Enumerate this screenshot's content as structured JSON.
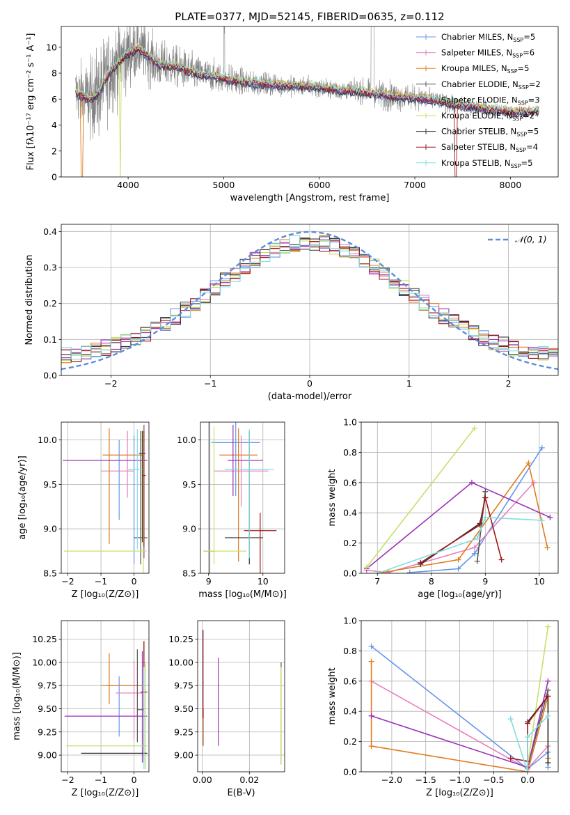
{
  "figure": {
    "title": "PLATE=0377, MJD=52145, FIBERID=0635, z=0.112"
  },
  "colors": {
    "Chabrier MILES": "#6495ed",
    "Salpeter MILES": "#e87fbd",
    "Kroupa MILES": "#e07b1f",
    "Chabrier ELODIE": "#555555",
    "Salpeter ELODIE": "#9b30b8",
    "Kroupa ELODIE": "#c6e06a",
    "Chabrier STELIB": "#333333",
    "Salpeter STELIB": "#a01818",
    "Kroupa STELIB": "#80dde0",
    "data": "#808080",
    "normal": "#5b8ddb"
  },
  "chart_data": [
    {
      "id": "spectrum",
      "type": "line",
      "title": "PLATE=0377, MJD=52145, FIBERID=0635, z=0.112",
      "xlabel": "wavelength [Angstrom, rest frame]",
      "ylabel": "Flux [fλ10⁻¹⁷ erg cm⁻² s⁻¹ A⁻¹]",
      "xlim": [
        3300,
        8500
      ],
      "ylim": [
        0,
        11.6
      ],
      "xticks": [
        4000,
        5000,
        6000,
        7000,
        8000
      ],
      "yticks": [
        0,
        2,
        4,
        6,
        8,
        10
      ],
      "grid": false,
      "legend_position": "top-right",
      "legend": [
        "Chabrier MILES, N_SSP=5",
        "Salpeter MILES, N_SSP=6",
        "Kroupa MILES, N_SSP=5",
        "Chabrier ELODIE, N_SSP=2",
        "Salpeter ELODIE, N_SSP=3",
        "Kroupa ELODIE, N_SSP=2",
        "Chabrier STELIB, N_SSP=5",
        "Salpeter STELIB, N_SSP=4",
        "Kroupa STELIB, N_SSP=5"
      ],
      "legend_display": [
        {
          "base": "Chabrier MILES, N",
          "sub": "SSP",
          "tail": "=5"
        },
        {
          "base": "Salpeter MILES, N",
          "sub": "SSP",
          "tail": "=6"
        },
        {
          "base": "Kroupa MILES, N",
          "sub": "SSP",
          "tail": "=5"
        },
        {
          "base": "Chabrier ELODIE, N",
          "sub": "SSP",
          "tail": "=2"
        },
        {
          "base": "Salpeter ELODIE, N",
          "sub": "SSP",
          "tail": "=3"
        },
        {
          "base": "Kroupa ELODIE, N",
          "sub": "SSP",
          "tail": "=2"
        },
        {
          "base": "Chabrier STELIB, N",
          "sub": "SSP",
          "tail": "=5"
        },
        {
          "base": "Salpeter STELIB, N",
          "sub": "SSP",
          "tail": "=4"
        },
        {
          "base": "Kroupa STELIB, N",
          "sub": "SSP",
          "tail": "=5"
        }
      ],
      "model_continuum": {
        "x": [
          3450,
          3600,
          3700,
          3800,
          3900,
          4000,
          4100,
          4200,
          4300,
          4400,
          4500,
          4700,
          5000,
          5200,
          5500,
          5800,
          6000,
          6200,
          6400,
          6600,
          6800,
          7000,
          7200,
          7400,
          7600,
          7800,
          8000,
          8200,
          8300
        ],
        "y": [
          6.5,
          6.0,
          6.5,
          8.0,
          8.9,
          9.5,
          9.9,
          9.4,
          8.7,
          8.6,
          8.5,
          8.0,
          7.6,
          7.3,
          7.1,
          7.0,
          6.9,
          6.7,
          6.6,
          6.4,
          6.2,
          6.1,
          5.9,
          5.6,
          5.4,
          5.2,
          5.0,
          5.0,
          5.1
        ]
      },
      "data_noise_profile": {
        "x": [
          3450,
          3700,
          3900,
          4100,
          4400,
          4800,
          5200,
          5600,
          6000,
          6400,
          6700,
          6900,
          7200,
          7600,
          8000,
          8300
        ],
        "sigma": [
          1.6,
          2.5,
          2.2,
          1.6,
          1.2,
          0.9,
          0.7,
          0.55,
          0.5,
          0.55,
          0.8,
          0.7,
          0.5,
          0.4,
          0.35,
          0.3
        ]
      }
    },
    {
      "id": "residual_histogram",
      "type": "line",
      "xlabel": "(data-model)/error",
      "ylabel": "Normed distribution",
      "xlim": [
        -2.5,
        2.5
      ],
      "ylim": [
        0,
        0.42
      ],
      "xticks": [
        -2,
        -1,
        0,
        1,
        2
      ],
      "yticks": [
        0.0,
        0.1,
        0.2,
        0.3,
        0.4
      ],
      "grid": true,
      "legend": [
        "𝒩(0, 1)"
      ],
      "legend_position": "top-right",
      "bin_width": 0.1,
      "reference_curve": "normal(0,1)"
    },
    {
      "id": "age_vs_Z_scatter",
      "type": "scatter",
      "xlabel": "Z [log₁₀(Z/Z⊙)]",
      "ylabel": "age  [log₁₀(age/yr)]",
      "xlim": [
        -2.2,
        0.45
      ],
      "ylim": [
        8.5,
        10.2
      ],
      "xticks": [
        -2,
        -1,
        0
      ],
      "yticks": [
        8.5,
        9.0,
        9.5,
        10.0
      ],
      "grid": true,
      "series": [
        {
          "name": "Chabrier MILES",
          "x": 0.0,
          "y": 9.45,
          "xerr": [
            0.0,
            0.0
          ],
          "yerr": [
            0.85,
            0.6
          ]
        },
        {
          "name": "Chabrier MILES",
          "x": -0.45,
          "y": 9.6,
          "xerr": [
            0,
            0
          ],
          "yerr": [
            0.5,
            0.4
          ]
        },
        {
          "name": "Salpeter MILES",
          "x": -0.2,
          "y": 9.65,
          "xerr": [
            0.8,
            0.2
          ],
          "yerr": [
            0.3,
            0.45
          ]
        },
        {
          "name": "Kroupa MILES",
          "x": -0.75,
          "y": 9.83,
          "xerr": [
            0.2,
            1.0
          ],
          "yerr": [
            1.0,
            0.3
          ]
        },
        {
          "name": "Chabrier ELODIE",
          "x": 0.2,
          "y": 8.9,
          "xerr": [
            0.2,
            0.2
          ],
          "yerr": [
            0.3,
            1.2
          ]
        },
        {
          "name": "Salpeter ELODIE",
          "x": 0.3,
          "y": 9.77,
          "xerr": [
            2.45,
            0.1
          ],
          "yerr": [
            1.1,
            0.4
          ]
        },
        {
          "name": "Kroupa ELODIE",
          "x": 0.28,
          "y": 8.75,
          "xerr": [
            2.4,
            0.1
          ],
          "yerr": [
            0.25,
            1.4
          ]
        },
        {
          "name": "Chabrier STELIB",
          "x": 0.25,
          "y": 9.85,
          "xerr": [
            0.1,
            0.1
          ],
          "yerr": [
            1.0,
            0.25
          ]
        },
        {
          "name": "Salpeter STELIB",
          "x": 0.3,
          "y": 9.6,
          "xerr": [
            0.05,
            0.05
          ],
          "yerr": [
            0.8,
            0.5
          ]
        },
        {
          "name": "Kroupa STELIB",
          "x": 0.1,
          "y": 9.67,
          "xerr": [
            0.3,
            0.15
          ],
          "yerr": [
            0.9,
            0.45
          ]
        }
      ]
    },
    {
      "id": "age_vs_mass_scatter",
      "type": "scatter",
      "xlabel": "mass [log₁₀(M/M⊙)]",
      "xlim": [
        8.85,
        10.4
      ],
      "ylim": [
        8.5,
        10.2
      ],
      "xticks": [
        9,
        10
      ],
      "yticks": [
        8.5,
        9.0,
        9.5,
        10.0
      ],
      "grid": true,
      "series": [
        {
          "name": "Chabrier MILES",
          "x": 9.5,
          "y": 9.97,
          "xerr": [
            0.45,
            0.45
          ],
          "yerr": [
            0.6,
            0.5
          ]
        },
        {
          "name": "Salpeter MILES",
          "x": 9.6,
          "y": 9.65,
          "xerr": [
            0.5,
            0.5
          ],
          "yerr": [
            0.4,
            0.4
          ]
        },
        {
          "name": "Kroupa MILES",
          "x": 9.55,
          "y": 9.83,
          "xerr": [
            0.35,
            0.35
          ],
          "yerr": [
            1.2,
            0.3
          ]
        },
        {
          "name": "Chabrier ELODIE",
          "x": 9.02,
          "y": 8.75,
          "xerr": [
            0.1,
            0.1
          ],
          "yerr": [
            0.3,
            1.45
          ]
        },
        {
          "name": "Salpeter ELODIE",
          "x": 9.45,
          "y": 9.77,
          "xerr": [
            0.1,
            0.55
          ],
          "yerr": [
            0.4,
            0.4
          ]
        },
        {
          "name": "Kroupa ELODIE",
          "x": 9.1,
          "y": 8.75,
          "xerr": [
            0.2,
            0.6
          ],
          "yerr": [
            0.15,
            1.4
          ]
        },
        {
          "name": "Chabrier STELIB",
          "x": 9.75,
          "y": 8.9,
          "xerr": [
            0.45,
            0.25
          ],
          "yerr": [
            0.3,
            1.2
          ]
        },
        {
          "name": "Salpeter STELIB",
          "x": 9.95,
          "y": 8.98,
          "xerr": [
            0.3,
            0.3
          ],
          "yerr": [
            1.2,
            0.2
          ]
        },
        {
          "name": "Kroupa STELIB",
          "x": 9.75,
          "y": 9.67,
          "xerr": [
            0.45,
            0.45
          ],
          "yerr": [
            1.0,
            0.45
          ]
        }
      ]
    },
    {
      "id": "mass_weight_vs_age",
      "type": "line",
      "xlabel": "age  [log₁₀(age/yr)]",
      "ylabel": "mass weight",
      "xlim": [
        6.7,
        10.35
      ],
      "ylim": [
        0.0,
        1.0
      ],
      "xticks": [
        7,
        8,
        9,
        10
      ],
      "yticks": [
        0.0,
        0.2,
        0.4,
        0.6,
        0.8,
        1.0
      ],
      "grid": true,
      "series": [
        {
          "name": "Chabrier MILES",
          "x": [
            7.6,
            8.5,
            8.8,
            10.05
          ],
          "y": [
            0.005,
            0.03,
            0.13,
            0.83
          ]
        },
        {
          "name": "Salpeter MILES",
          "x": [
            6.8,
            7.2,
            8.8,
            9.9
          ],
          "y": [
            0.02,
            0.005,
            0.17,
            0.6
          ]
        },
        {
          "name": "Kroupa MILES",
          "x": [
            7.0,
            8.5,
            9.8,
            10.15
          ],
          "y": [
            0.0,
            0.09,
            0.73,
            0.17
          ]
        },
        {
          "name": "Chabrier ELODIE",
          "x": [
            8.85,
            9.0
          ],
          "y": [
            0.08,
            0.54
          ]
        },
        {
          "name": "Salpeter ELODIE",
          "x": [
            6.8,
            8.75,
            10.2
          ],
          "y": [
            0.03,
            0.6,
            0.37
          ]
        },
        {
          "name": "Kroupa ELODIE",
          "x": [
            6.8,
            8.8
          ],
          "y": [
            0.04,
            0.96
          ]
        },
        {
          "name": "Chabrier STELIB",
          "x": [
            7.8,
            8.9,
            9.0
          ],
          "y": [
            0.06,
            0.33,
            0.5
          ]
        },
        {
          "name": "Salpeter STELIB",
          "x": [
            7.8,
            8.9,
            9.0,
            9.3
          ],
          "y": [
            0.07,
            0.32,
            0.5,
            0.09
          ]
        },
        {
          "name": "Kroupa STELIB",
          "x": [
            7.0,
            8.85,
            9.0,
            10.05
          ],
          "y": [
            0.0,
            0.23,
            0.37,
            0.35
          ]
        }
      ]
    },
    {
      "id": "mass_vs_Z_scatter",
      "type": "scatter",
      "xlabel": "Z [log₁₀(Z/Z⊙)]",
      "ylabel": "mass [log₁₀(M/M⊙)]",
      "xlim": [
        -2.2,
        0.45
      ],
      "ylim": [
        8.82,
        10.45
      ],
      "xticks": [
        -2,
        -1,
        0
      ],
      "yticks": [
        9.0,
        9.25,
        9.5,
        9.75,
        10.0,
        10.25
      ],
      "grid": true,
      "series": [
        {
          "name": "Chabrier MILES",
          "x": -0.45,
          "y": 9.75,
          "xerr": [
            0.4,
            0.8
          ],
          "yerr": [
            0.55,
            0.1
          ]
        },
        {
          "name": "Salpeter MILES",
          "x": 0.0,
          "y": 9.67,
          "xerr": [
            0.55,
            0.25
          ],
          "yerr": [
            0.5,
            0.35
          ]
        },
        {
          "name": "Kroupa MILES",
          "x": -0.75,
          "y": 9.75,
          "xerr": [
            0.25,
            1.0
          ],
          "yerr": [
            0.2,
            0.35
          ]
        },
        {
          "name": "Chabrier ELODIE",
          "x": 0.1,
          "y": 9.49,
          "xerr": [
            0.0,
            0.2
          ],
          "yerr": [
            0.35,
            0.65
          ]
        },
        {
          "name": "Salpeter ELODIE",
          "x": 0.25,
          "y": 9.42,
          "xerr": [
            2.35,
            0.15
          ],
          "yerr": [
            0.5,
            0.7
          ]
        },
        {
          "name": "Kroupa ELODIE",
          "x": 0.35,
          "y": 9.1,
          "xerr": [
            2.4,
            0.05
          ],
          "yerr": [
            0.25,
            0.9
          ]
        },
        {
          "name": "Chabrier STELIB",
          "x": 0.3,
          "y": 9.02,
          "xerr": [
            1.9,
            0.1
          ],
          "yerr": [
            0.1,
            1.2
          ]
        },
        {
          "name": "Salpeter STELIB",
          "x": 0.3,
          "y": 9.68,
          "xerr": [
            0.1,
            0.1
          ],
          "yerr": [
            0.7,
            0.55
          ]
        },
        {
          "name": "Kroupa STELIB",
          "x": 0.3,
          "y": 9.75,
          "xerr": [
            0.05,
            0.05
          ],
          "yerr": [
            0.9,
            0.2
          ]
        }
      ]
    },
    {
      "id": "ebv_panel",
      "type": "scatter",
      "xlabel": "E(B-V)",
      "xlim": [
        -0.002,
        0.035
      ],
      "ylim": [
        8.82,
        10.45
      ],
      "xticks": [
        0.0,
        0.02
      ],
      "yticks": [
        9.0,
        9.25,
        9.5,
        9.75,
        10.0,
        10.25
      ],
      "grid": true,
      "series": [
        {
          "name": "Chabrier MILES",
          "x": 0.0002,
          "y": 9.6,
          "yerr": [
            0.5,
            0.75
          ]
        },
        {
          "name": "Kroupa MILES",
          "x": 0.0004,
          "y": 9.3,
          "yerr": [
            0.2,
            0.2
          ]
        },
        {
          "name": "Salpeter ELODIE",
          "x": 0.0068,
          "y": 9.55,
          "yerr": [
            0.45,
            0.5
          ]
        },
        {
          "name": "Salpeter STELIB",
          "x": 0.0003,
          "y": 9.9,
          "yerr": [
            0.5,
            0.45
          ]
        },
        {
          "name": "Chabrier ELODIE",
          "x": 0.0335,
          "y": 9.5,
          "yerr": [
            0.6,
            0.5
          ]
        },
        {
          "name": "Kroupa ELODIE",
          "x": 0.0335,
          "y": 9.4,
          "yerr": [
            0.5,
            0.55
          ]
        }
      ]
    },
    {
      "id": "mass_weight_vs_Z",
      "type": "line",
      "xlabel": "Z [log₁₀(Z/Z⊙)]",
      "ylabel": "mass weight",
      "xlim": [
        -2.45,
        0.45
      ],
      "ylim": [
        0.0,
        1.0
      ],
      "xticks": [
        -2.0,
        -1.5,
        -1.0,
        -0.5,
        0.0
      ],
      "yticks": [
        0.0,
        0.2,
        0.4,
        0.6,
        0.8,
        1.0
      ],
      "grid": true,
      "series": [
        {
          "name": "Chabrier MILES",
          "x": [
            -2.3,
            0.0,
            0.3,
            0.3
          ],
          "y": [
            0.83,
            0.02,
            0.13,
            0.03
          ]
        },
        {
          "name": "Salpeter MILES",
          "x": [
            -2.3,
            0.0,
            0.3
          ],
          "y": [
            0.6,
            0.02,
            0.17
          ]
        },
        {
          "name": "Kroupa MILES",
          "x": [
            -2.3,
            -2.3,
            0.0,
            0.3,
            0.3
          ],
          "y": [
            0.73,
            0.17,
            0.0,
            0.5,
            0.09
          ]
        },
        {
          "name": "Chabrier ELODIE",
          "x": [
            0.0,
            0.3
          ],
          "y": [
            0.03,
            0.54
          ]
        },
        {
          "name": "Salpeter ELODIE",
          "x": [
            -2.3,
            0.0,
            0.3
          ],
          "y": [
            0.37,
            0.03,
            0.6
          ]
        },
        {
          "name": "Kroupa ELODIE",
          "x": [
            0.0,
            0.3
          ],
          "y": [
            0.04,
            0.96
          ]
        },
        {
          "name": "Chabrier STELIB",
          "x": [
            0.0,
            0.3,
            0.3
          ],
          "y": [
            0.33,
            0.5,
            0.06
          ]
        },
        {
          "name": "Salpeter STELIB",
          "x": [
            -0.25,
            0.0,
            0.0,
            0.3
          ],
          "y": [
            0.09,
            0.07,
            0.32,
            0.5
          ]
        },
        {
          "name": "Kroupa STELIB",
          "x": [
            -0.25,
            0.0,
            0.0,
            0.3
          ],
          "y": [
            0.35,
            0.0,
            0.23,
            0.37
          ]
        }
      ]
    }
  ]
}
